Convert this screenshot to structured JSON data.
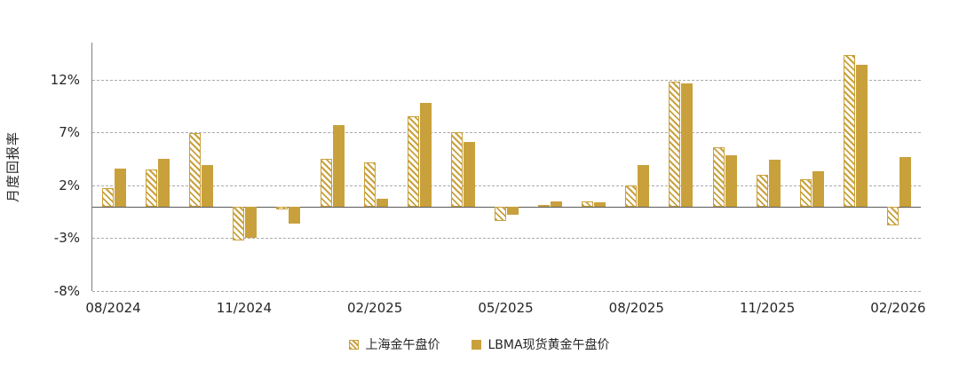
{
  "accent_color": "#c9a13c",
  "chart_data": {
    "type": "bar",
    "title": "",
    "ylabel": "月度回报率",
    "xlabel": "",
    "grid": "dashed-horizontal",
    "legend_position": "bottom",
    "ylim": [
      -8,
      15.5
    ],
    "yticks": [
      -8,
      -3,
      2,
      7,
      12
    ],
    "ytick_labels": [
      "-8%",
      "-3%",
      "2%",
      "7%",
      "12%"
    ],
    "categories": [
      "08/2024",
      "09/2024",
      "10/2024",
      "11/2024",
      "12/2024",
      "01/2025",
      "02/2025",
      "03/2025",
      "04/2025",
      "05/2025",
      "06/2025",
      "07/2025",
      "08/2025",
      "09/2025",
      "10/2025",
      "11/2025",
      "12/2025",
      "01/2026",
      "02/2026"
    ],
    "xtick_indices": [
      0,
      3,
      6,
      9,
      12,
      15,
      18
    ],
    "xtick_labels": [
      "08/2024",
      "11/2024",
      "02/2025",
      "05/2025",
      "08/2025",
      "11/2025",
      "02/2026"
    ],
    "series": [
      {
        "name": "上海金午盘价",
        "style": "hatched",
        "values": [
          1.7,
          3.5,
          6.9,
          -3.2,
          -0.3,
          4.5,
          4.2,
          8.5,
          7.0,
          -1.4,
          0.1,
          0.5,
          2.0,
          11.8,
          5.6,
          3.0,
          2.6,
          14.3,
          -1.8
        ]
      },
      {
        "name": "LBMA现货黄金午盘价",
        "style": "solid",
        "values": [
          3.6,
          4.5,
          3.9,
          -3.0,
          -1.6,
          7.7,
          0.7,
          9.8,
          6.1,
          -0.8,
          0.5,
          0.4,
          3.9,
          11.6,
          4.8,
          4.4,
          3.3,
          13.4,
          4.7
        ]
      }
    ]
  }
}
